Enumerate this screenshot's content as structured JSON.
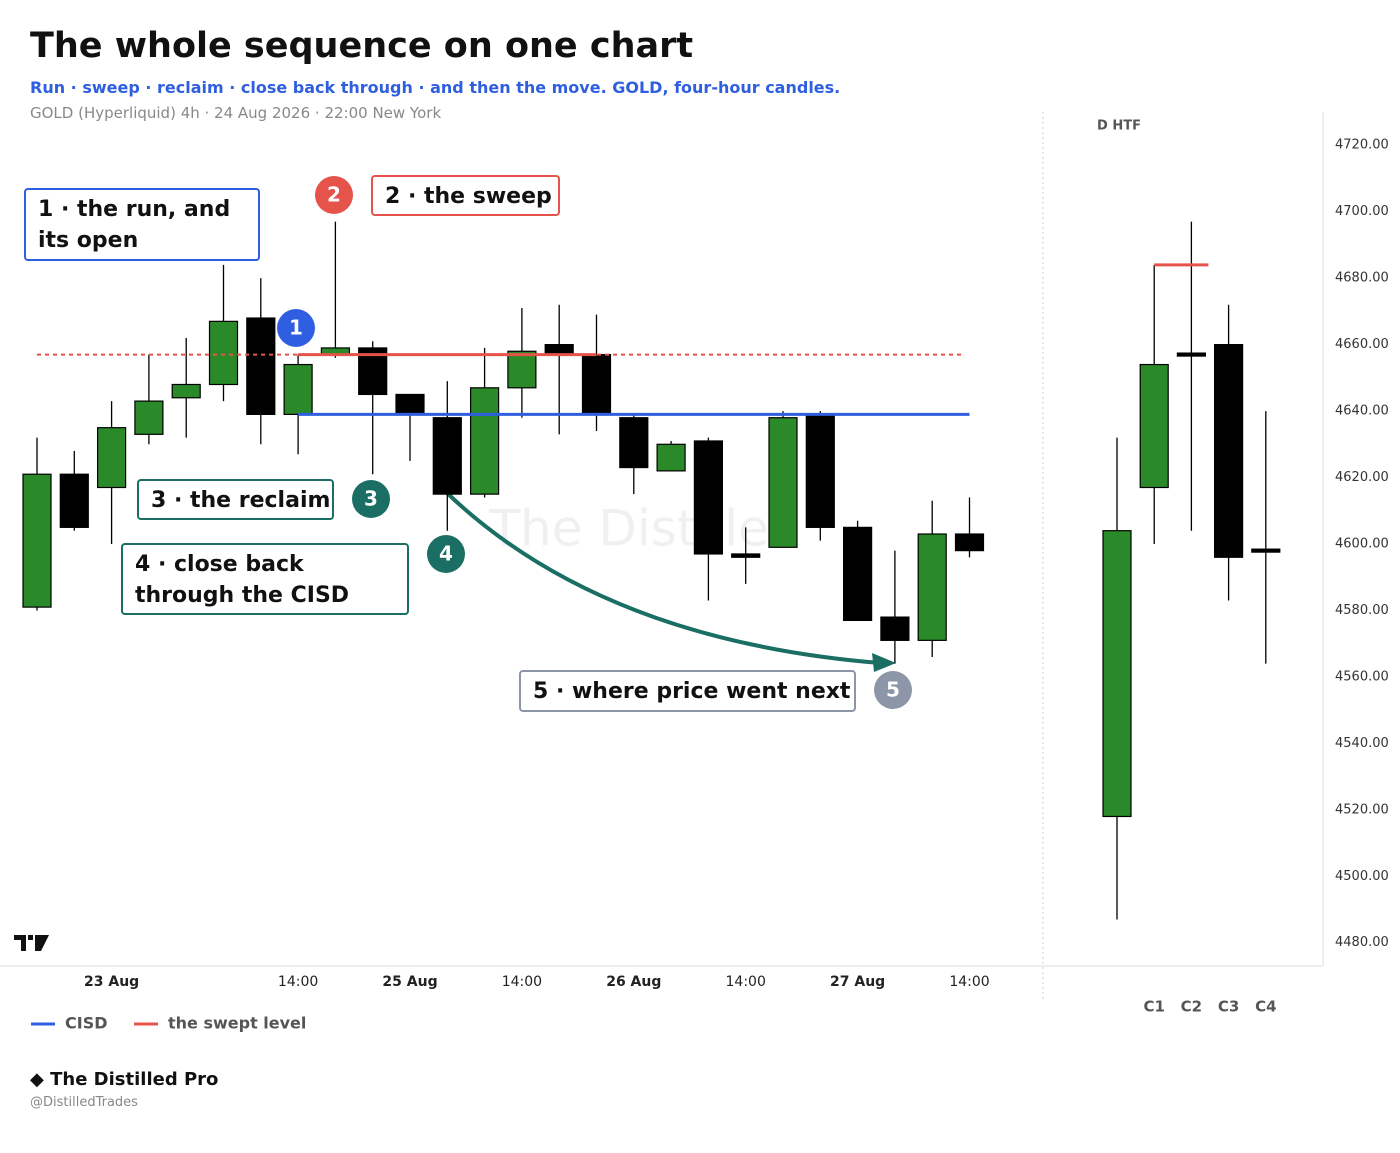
{
  "chart_data": [
    {
      "type": "candlestick",
      "title": "The whole sequence on one chart",
      "subtitle": "Run · sweep · reclaim · close back through · and then the move. GOLD, four-hour candles.",
      "source": "GOLD (Hyperliquid) 4h · 24 Aug 2026 · 22:00 New York",
      "categories": [
        null,
        null,
        "23 Aug",
        null,
        null,
        null,
        null,
        "14:00",
        null,
        null,
        "25 Aug",
        null,
        null,
        "14:00",
        null,
        null,
        "26 Aug",
        null,
        null,
        "14:00",
        null,
        null,
        "27 Aug",
        null,
        null,
        "14:00"
      ],
      "open": [
        4581,
        4621,
        4617,
        4633,
        4644,
        4648,
        4668,
        4639,
        4657,
        4659,
        4645,
        4638,
        4615,
        4647,
        4660,
        4657,
        4638,
        4622,
        4631,
        4597,
        4599,
        4639,
        4605,
        4578,
        4571,
        4603
      ],
      "high": [
        4632,
        4628,
        4643,
        4657,
        4662,
        4684,
        4680,
        4657,
        4697,
        4661,
        4645,
        4649,
        4659,
        4671,
        4672,
        4669,
        4639,
        4631,
        4632,
        4605,
        4640,
        4640,
        4607,
        4598,
        4613,
        4614
      ],
      "low": [
        4580,
        4604,
        4600,
        4630,
        4632,
        4643,
        4630,
        4627,
        4656,
        4621,
        4625,
        4604,
        4614,
        4638,
        4633,
        4634,
        4615,
        4622,
        4583,
        4588,
        4599,
        4601,
        4577,
        4564,
        4566,
        4596
      ],
      "close": [
        4621,
        4605,
        4635,
        4643,
        4648,
        4667,
        4639,
        4654,
        4659,
        4645,
        4639,
        4615,
        4647,
        4658,
        4657,
        4639,
        4623,
        4630,
        4597,
        4596,
        4638,
        4605,
        4577,
        4571,
        4603,
        4598
      ],
      "up_color": "#2a8a2a",
      "down_color": "#000000",
      "ylim": [
        4473,
        4730
      ],
      "levels": [
        {
          "name": "CISD",
          "color": "#2f5fe0",
          "value": 4639
        },
        {
          "name": "the swept level",
          "color": "#e5534b",
          "value": 4657
        }
      ],
      "annotations": [
        {
          "badge": "1",
          "lines": [
            "1 · the run, and",
            "its open"
          ],
          "color": "#2f5fe0"
        },
        {
          "badge": "2",
          "lines": [
            "2 · the sweep"
          ],
          "color": "#e5534b"
        },
        {
          "badge": "3",
          "lines": [
            "3 · the reclaim"
          ],
          "color": "#1a6e63"
        },
        {
          "badge": "4",
          "lines": [
            "4 · close back",
            "through the CISD"
          ],
          "color": "#1a6e63"
        },
        {
          "badge": "5",
          "lines": [
            "5 · where price went next"
          ],
          "color": "#8d96a8"
        }
      ]
    },
    {
      "type": "candlestick",
      "title": "D HTF",
      "categories": [
        null,
        "C1",
        "C2",
        "C3",
        "C4"
      ],
      "open": [
        4518,
        4617,
        4657,
        4660,
        4598
      ],
      "high": [
        4632,
        4684,
        4697,
        4672,
        4640
      ],
      "low": [
        4487,
        4600,
        4604,
        4583,
        4564
      ],
      "close": [
        4604,
        4654,
        4657,
        4596,
        4598
      ],
      "up_color": "#2a8a2a",
      "down_color": "#000000",
      "ylim": [
        4473,
        4730
      ],
      "yticks": [
        {
          "value": 4720,
          "label": "4720.00"
        },
        {
          "value": 4700,
          "label": "4700.00"
        },
        {
          "value": 4680,
          "label": "4680.00"
        },
        {
          "value": 4660,
          "label": "4660.00"
        },
        {
          "value": 4640,
          "label": "4640.00"
        },
        {
          "value": 4620,
          "label": "4620.00"
        },
        {
          "value": 4600,
          "label": "4600.00"
        },
        {
          "value": 4580,
          "label": "4580.00"
        },
        {
          "value": 4560,
          "label": "4560.00"
        },
        {
          "value": 4540,
          "label": "4540.00"
        },
        {
          "value": 4520,
          "label": "4520.00"
        },
        {
          "value": 4500,
          "label": "4500.00"
        },
        {
          "value": 4480,
          "label": "4480.00"
        }
      ],
      "levels": [
        {
          "color": "#e5534b",
          "value": 4684
        }
      ]
    }
  ],
  "watermark": "The Distilled",
  "footer": {
    "brand": "◆ The Distilled Pro",
    "handle": "@DistilledTrades"
  }
}
